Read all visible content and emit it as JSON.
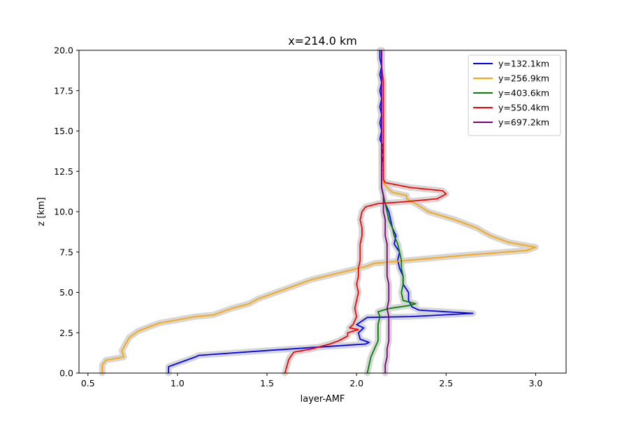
{
  "chart_data": {
    "type": "line",
    "title": "x=214.0 km",
    "xlabel": "layer-AMF",
    "ylabel": "z [km]",
    "xlim": [
      0.45,
      3.17
    ],
    "ylim": [
      0,
      20
    ],
    "xticks": [
      0.5,
      1.0,
      1.5,
      2.0,
      2.5,
      3.0
    ],
    "xtick_labels": [
      "0.5",
      "1.0",
      "1.5",
      "2.0",
      "2.5",
      "3.0"
    ],
    "yticks": [
      0,
      2.5,
      5,
      7.5,
      10,
      12.5,
      15,
      17.5,
      20
    ],
    "ytick_labels": [
      "0.0",
      "2.5",
      "5.0",
      "7.5",
      "10.0",
      "12.5",
      "15.0",
      "17.5",
      "20.0"
    ],
    "grid": false,
    "legend_position": "top-right",
    "uncertainty_band_color": "#d3d3d3",
    "series": [
      {
        "name": "y=132.1km",
        "color": "#0000ff",
        "points": [
          [
            0.95,
            0
          ],
          [
            0.95,
            0.4
          ],
          [
            1.0,
            0.6
          ],
          [
            1.05,
            0.8
          ],
          [
            1.1,
            1.0
          ],
          [
            1.12,
            1.1
          ],
          [
            1.5,
            1.4
          ],
          [
            2.05,
            1.8
          ],
          [
            2.07,
            1.9
          ],
          [
            2.02,
            2.1
          ],
          [
            2.01,
            2.5
          ],
          [
            2.04,
            2.8
          ],
          [
            2.0,
            3.0
          ],
          [
            2.04,
            3.3
          ],
          [
            2.06,
            3.45
          ],
          [
            2.3,
            3.5
          ],
          [
            2.65,
            3.7
          ],
          [
            2.35,
            3.9
          ],
          [
            2.31,
            4.1
          ],
          [
            2.29,
            4.5
          ],
          [
            2.29,
            5.0
          ],
          [
            2.26,
            5.5
          ],
          [
            2.26,
            6.0
          ],
          [
            2.24,
            6.5
          ],
          [
            2.23,
            7.0
          ],
          [
            2.24,
            7.5
          ],
          [
            2.21,
            8.0
          ],
          [
            2.22,
            8.5
          ],
          [
            2.2,
            9.0
          ],
          [
            2.19,
            9.5
          ],
          [
            2.18,
            10.0
          ],
          [
            2.16,
            10.5
          ],
          [
            2.15,
            11.0
          ],
          [
            2.14,
            11.5
          ],
          [
            2.14,
            12.0
          ],
          [
            2.14,
            12.5
          ],
          [
            2.15,
            13.0
          ],
          [
            2.14,
            13.5
          ],
          [
            2.15,
            14.0
          ],
          [
            2.13,
            14.5
          ],
          [
            2.14,
            15.0
          ],
          [
            2.13,
            15.5
          ],
          [
            2.14,
            16.0
          ],
          [
            2.13,
            16.5
          ],
          [
            2.14,
            17.0
          ],
          [
            2.13,
            17.5
          ],
          [
            2.14,
            18.0
          ],
          [
            2.13,
            18.5
          ],
          [
            2.14,
            19.0
          ],
          [
            2.13,
            19.5
          ],
          [
            2.13,
            20.0
          ]
        ]
      },
      {
        "name": "y=256.9km",
        "color": "#ffa500",
        "points": [
          [
            0.58,
            0
          ],
          [
            0.58,
            0.5
          ],
          [
            0.6,
            0.8
          ],
          [
            0.7,
            1.0
          ],
          [
            0.69,
            1.4
          ],
          [
            0.71,
            1.8
          ],
          [
            0.73,
            2.2
          ],
          [
            0.78,
            2.6
          ],
          [
            0.85,
            2.9
          ],
          [
            0.9,
            3.1
          ],
          [
            1.0,
            3.3
          ],
          [
            1.1,
            3.5
          ],
          [
            1.2,
            3.6
          ],
          [
            1.25,
            3.8
          ],
          [
            1.3,
            4.0
          ],
          [
            1.4,
            4.3
          ],
          [
            1.45,
            4.6
          ],
          [
            1.55,
            5.0
          ],
          [
            1.65,
            5.4
          ],
          [
            1.75,
            5.8
          ],
          [
            1.9,
            6.2
          ],
          [
            2.05,
            6.6
          ],
          [
            2.1,
            6.8
          ],
          [
            2.3,
            7.0
          ],
          [
            2.6,
            7.3
          ],
          [
            2.95,
            7.6
          ],
          [
            3.0,
            7.8
          ],
          [
            2.85,
            8.1
          ],
          [
            2.75,
            8.5
          ],
          [
            2.7,
            8.8
          ],
          [
            2.67,
            9.0
          ],
          [
            2.55,
            9.5
          ],
          [
            2.4,
            10.0
          ],
          [
            2.33,
            10.5
          ],
          [
            2.28,
            10.8
          ],
          [
            2.28,
            11.0
          ],
          [
            2.2,
            11.2
          ],
          [
            2.17,
            11.5
          ],
          [
            2.15,
            11.8
          ],
          [
            2.15,
            12.5
          ],
          [
            2.14,
            13.0
          ],
          [
            2.14,
            14.0
          ],
          [
            2.14,
            15.0
          ],
          [
            2.14,
            16.0
          ],
          [
            2.14,
            17.0
          ],
          [
            2.14,
            18.0
          ],
          [
            2.14,
            19.0
          ],
          [
            2.14,
            20.0
          ]
        ]
      },
      {
        "name": "y=403.6km",
        "color": "#008000",
        "points": [
          [
            2.06,
            0
          ],
          [
            2.07,
            0.5
          ],
          [
            2.08,
            1.0
          ],
          [
            2.1,
            1.5
          ],
          [
            2.12,
            2.0
          ],
          [
            2.12,
            2.5
          ],
          [
            2.12,
            3.0
          ],
          [
            2.13,
            3.5
          ],
          [
            2.12,
            3.8
          ],
          [
            2.18,
            4.0
          ],
          [
            2.3,
            4.2
          ],
          [
            2.33,
            4.3
          ],
          [
            2.26,
            4.5
          ],
          [
            2.25,
            5.0
          ],
          [
            2.26,
            5.5
          ],
          [
            2.26,
            6.0
          ],
          [
            2.25,
            6.5
          ],
          [
            2.25,
            7.0
          ],
          [
            2.24,
            7.5
          ],
          [
            2.23,
            8.0
          ],
          [
            2.21,
            8.5
          ],
          [
            2.2,
            9.0
          ],
          [
            2.18,
            9.5
          ],
          [
            2.17,
            10.0
          ],
          [
            2.16,
            10.5
          ],
          [
            2.15,
            11.0
          ],
          [
            2.14,
            11.5
          ],
          [
            2.14,
            12.0
          ],
          [
            2.14,
            13.0
          ],
          [
            2.14,
            14.0
          ],
          [
            2.14,
            15.0
          ],
          [
            2.14,
            16.0
          ],
          [
            2.14,
            17.0
          ],
          [
            2.14,
            18.0
          ],
          [
            2.14,
            19.0
          ],
          [
            2.14,
            20.0
          ]
        ]
      },
      {
        "name": "y=550.4km",
        "color": "#ff0000",
        "points": [
          [
            1.6,
            0
          ],
          [
            1.61,
            0.4
          ],
          [
            1.62,
            0.8
          ],
          [
            1.63,
            1.0
          ],
          [
            1.65,
            1.3
          ],
          [
            1.75,
            1.5
          ],
          [
            1.85,
            1.8
          ],
          [
            1.9,
            2.0
          ],
          [
            1.95,
            2.3
          ],
          [
            1.95,
            2.5
          ],
          [
            2.01,
            2.7
          ],
          [
            1.96,
            2.8
          ],
          [
            1.98,
            3.0
          ],
          [
            2.0,
            3.5
          ],
          [
            1.99,
            4.0
          ],
          [
            2.0,
            4.5
          ],
          [
            2.01,
            5.0
          ],
          [
            2.0,
            5.5
          ],
          [
            2.01,
            6.0
          ],
          [
            2.01,
            6.5
          ],
          [
            2.02,
            7.0
          ],
          [
            2.02,
            7.5
          ],
          [
            2.02,
            8.0
          ],
          [
            2.03,
            8.5
          ],
          [
            2.03,
            9.0
          ],
          [
            2.02,
            9.5
          ],
          [
            2.03,
            10.0
          ],
          [
            2.05,
            10.3
          ],
          [
            2.12,
            10.5
          ],
          [
            2.25,
            10.6
          ],
          [
            2.45,
            10.8
          ],
          [
            2.5,
            11.1
          ],
          [
            2.48,
            11.3
          ],
          [
            2.3,
            11.5
          ],
          [
            2.16,
            11.8
          ],
          [
            2.15,
            12.0
          ],
          [
            2.15,
            13.0
          ],
          [
            2.15,
            14.0
          ],
          [
            2.15,
            15.0
          ],
          [
            2.15,
            16.0
          ],
          [
            2.15,
            17.0
          ],
          [
            2.15,
            18.0
          ],
          [
            2.14,
            19.0
          ],
          [
            2.14,
            20.0
          ]
        ]
      },
      {
        "name": "y=697.2km",
        "color": "#800080",
        "points": [
          [
            2.16,
            0
          ],
          [
            2.16,
            0.5
          ],
          [
            2.17,
            1.0
          ],
          [
            2.17,
            1.5
          ],
          [
            2.18,
            2.0
          ],
          [
            2.18,
            2.5
          ],
          [
            2.18,
            3.0
          ],
          [
            2.18,
            3.5
          ],
          [
            2.17,
            4.0
          ],
          [
            2.18,
            4.5
          ],
          [
            2.18,
            5.0
          ],
          [
            2.18,
            5.5
          ],
          [
            2.17,
            6.0
          ],
          [
            2.17,
            6.5
          ],
          [
            2.17,
            7.0
          ],
          [
            2.17,
            7.5
          ],
          [
            2.17,
            8.0
          ],
          [
            2.16,
            8.5
          ],
          [
            2.16,
            9.0
          ],
          [
            2.16,
            9.5
          ],
          [
            2.15,
            10.0
          ],
          [
            2.15,
            10.5
          ],
          [
            2.15,
            11.0
          ],
          [
            2.14,
            11.5
          ],
          [
            2.14,
            12.0
          ],
          [
            2.14,
            13.0
          ],
          [
            2.14,
            14.0
          ],
          [
            2.14,
            15.0
          ],
          [
            2.14,
            16.0
          ],
          [
            2.14,
            17.0
          ],
          [
            2.14,
            18.0
          ],
          [
            2.14,
            19.0
          ],
          [
            2.14,
            20.0
          ]
        ]
      }
    ]
  }
}
